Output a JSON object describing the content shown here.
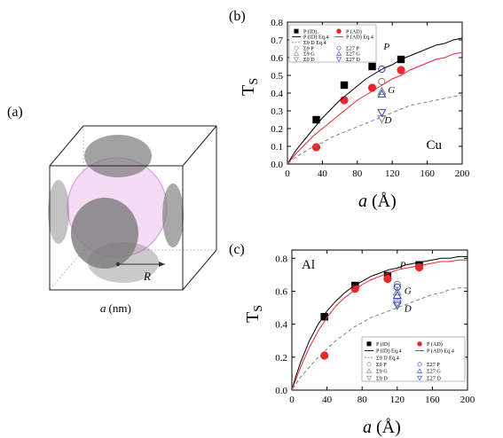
{
  "panels": {
    "a": {
      "label": "(a)",
      "radius_label": "R",
      "edge_label_var": "a",
      "edge_label_unit": "(nm)"
    },
    "b": {
      "label": "(b)",
      "element": "Cu"
    },
    "c": {
      "label": "(c)",
      "element": "Al"
    }
  },
  "colors": {
    "id_series": "#000000",
    "ad_series": "#e8262c",
    "sigma9": "#808080",
    "sigma27": "#2b3fd6",
    "fit_d": "#808080",
    "sphere_fill": "#f4d9f4",
    "disk_fill": "#7a7a7a"
  },
  "chart_data": [
    {
      "type": "scatter",
      "panel": "b",
      "ylabel_main": "T",
      "ylabel_sub": "S",
      "xlabel_var": "a",
      "xlabel_unit": "(Å)",
      "xlim": [
        0,
        200
      ],
      "ylim": [
        0,
        0.8
      ],
      "xticks": [
        "0",
        "40",
        "80",
        "120",
        "160",
        "200"
      ],
      "yticks": [
        "0.0",
        "0.1",
        "0.2",
        "0.3",
        "0.4",
        "0.5",
        "0.6",
        "0.7",
        "0.8"
      ],
      "legend": {
        "id": "P (ID)",
        "ad": "P (AD)",
        "id_fit": "P (ID) Eq.4",
        "ad_fit": "P (AD) Eq.4",
        "d_fit": "Σ9 D Eq.4",
        "s9p": "Σ9 P",
        "s9g": "Σ9 G",
        "s9d": "Σ9 D",
        "s27p": "Σ27 P",
        "s27g": "Σ27 G",
        "s27d": "Σ27 D"
      },
      "series": [
        {
          "name": "P (ID)",
          "marker": "square",
          "x": [
            33,
            65,
            97,
            130
          ],
          "y": [
            0.25,
            0.445,
            0.55,
            0.59
          ]
        },
        {
          "name": "P (AD)",
          "marker": "circle",
          "x": [
            33,
            65,
            97,
            130
          ],
          "y": [
            0.095,
            0.36,
            0.43,
            0.53
          ]
        },
        {
          "name": "Σ9 P",
          "marker": "circle-open",
          "x": [
            108
          ],
          "y": [
            0.465
          ]
        },
        {
          "name": "Σ9 G",
          "marker": "triangle-up-open",
          "x": [
            108
          ],
          "y": [
            0.41
          ]
        },
        {
          "name": "Σ9 D",
          "marker": "triangle-down-open",
          "x": [
            108
          ],
          "y": [
            0.255
          ]
        },
        {
          "name": "Σ27 P",
          "marker": "circle-open",
          "x": [
            108
          ],
          "y": [
            0.535
          ]
        },
        {
          "name": "Σ27 G",
          "marker": "triangle-up-open",
          "x": [
            108
          ],
          "y": [
            0.395
          ]
        },
        {
          "name": "Σ27 D",
          "marker": "triangle-down-open",
          "x": [
            108
          ],
          "y": [
            0.29
          ]
        },
        {
          "name": "P (ID) Eq.4",
          "line": "solid",
          "x": [
            1,
            5,
            10,
            20,
            30,
            40,
            50,
            60,
            70,
            80,
            90,
            100,
            110,
            120,
            130,
            140,
            150,
            160,
            170,
            180,
            190,
            200
          ],
          "y": [
            0.009,
            0.04,
            0.08,
            0.14,
            0.2,
            0.26,
            0.31,
            0.36,
            0.4,
            0.44,
            0.48,
            0.51,
            0.54,
            0.56,
            0.59,
            0.61,
            0.63,
            0.65,
            0.67,
            0.68,
            0.7,
            0.71
          ]
        },
        {
          "name": "P (AD) Eq.4",
          "line": "solid",
          "x": [
            1,
            5,
            10,
            20,
            30,
            40,
            50,
            60,
            70,
            80,
            90,
            100,
            110,
            120,
            130,
            140,
            150,
            160,
            170,
            180,
            190,
            200
          ],
          "y": [
            0.007,
            0.03,
            0.06,
            0.11,
            0.16,
            0.2,
            0.24,
            0.28,
            0.32,
            0.36,
            0.39,
            0.42,
            0.45,
            0.48,
            0.5,
            0.53,
            0.55,
            0.57,
            0.59,
            0.6,
            0.62,
            0.63
          ]
        },
        {
          "name": "Σ9 D Eq.4",
          "line": "dashed",
          "x": [
            1,
            5,
            10,
            20,
            30,
            40,
            50,
            60,
            70,
            80,
            90,
            100,
            110,
            120,
            130,
            140,
            150,
            160,
            170,
            180,
            190,
            200
          ],
          "y": [
            0.004,
            0.02,
            0.04,
            0.07,
            0.1,
            0.12,
            0.15,
            0.17,
            0.19,
            0.21,
            0.23,
            0.25,
            0.27,
            0.29,
            0.31,
            0.33,
            0.34,
            0.35,
            0.36,
            0.37,
            0.38,
            0.39
          ]
        }
      ],
      "annotations": [
        {
          "text": "P",
          "x": 110,
          "y": 0.645
        },
        {
          "text": "G",
          "x": 115,
          "y": 0.4
        },
        {
          "text": "D",
          "x": 111,
          "y": 0.23
        }
      ]
    },
    {
      "type": "scatter",
      "panel": "c",
      "ylabel_main": "T",
      "ylabel_sub": "S",
      "xlabel_var": "a",
      "xlabel_unit": "(Å)",
      "xlim": [
        0,
        200
      ],
      "ylim": [
        0,
        0.85
      ],
      "xticks": [
        "0",
        "40",
        "80",
        "120",
        "160",
        "200"
      ],
      "yticks": [
        "0.0",
        "0.2",
        "0.4",
        "0.6",
        "0.8"
      ],
      "legend": {
        "id": "P (ID)",
        "ad": "P (AD)",
        "id_fit": "P (ID) Eq.4",
        "ad_fit": "P (AD) Eq.4",
        "d_fit": "Σ9 D Eq.4",
        "s9p": "Σ9 P",
        "s9g": "Σ9 G",
        "s9d": "Σ9 D",
        "s27p": "Σ27 P",
        "s27g": "Σ27 G",
        "s27d": "Σ27 D"
      },
      "series": [
        {
          "name": "P (ID)",
          "marker": "square",
          "x": [
            37,
            72,
            109,
            145
          ],
          "y": [
            0.445,
            0.635,
            0.695,
            0.76
          ]
        },
        {
          "name": "P (AD)",
          "marker": "circle",
          "x": [
            37,
            72,
            109,
            145
          ],
          "y": [
            0.21,
            0.615,
            0.675,
            0.745
          ]
        },
        {
          "name": "Σ9 P",
          "marker": "circle-open",
          "x": [
            120
          ],
          "y": [
            0.64
          ]
        },
        {
          "name": "Σ9 G",
          "marker": "triangle-up-open",
          "x": [
            120
          ],
          "y": [
            0.595
          ]
        },
        {
          "name": "Σ9 D",
          "marker": "triangle-down-open",
          "x": [
            120
          ],
          "y": [
            0.53
          ]
        },
        {
          "name": "Σ27 P",
          "marker": "circle-open",
          "x": [
            120
          ],
          "y": [
            0.625
          ]
        },
        {
          "name": "Σ27 G",
          "marker": "triangle-up-open",
          "x": [
            120
          ],
          "y": [
            0.575
          ]
        },
        {
          "name": "Σ27 D",
          "marker": "triangle-down-open",
          "x": [
            120
          ],
          "y": [
            0.515
          ]
        },
        {
          "name": "P (ID) Eq.4",
          "line": "solid",
          "x": [
            1,
            5,
            10,
            20,
            30,
            40,
            50,
            60,
            70,
            80,
            90,
            100,
            110,
            120,
            130,
            140,
            150,
            160,
            170,
            180,
            190,
            200
          ],
          "y": [
            0.02,
            0.09,
            0.17,
            0.3,
            0.4,
            0.48,
            0.54,
            0.59,
            0.63,
            0.66,
            0.69,
            0.71,
            0.73,
            0.74,
            0.76,
            0.77,
            0.78,
            0.79,
            0.8,
            0.8,
            0.81,
            0.81
          ]
        },
        {
          "name": "P (AD) Eq.4",
          "line": "solid",
          "x": [
            1,
            5,
            10,
            20,
            30,
            40,
            50,
            60,
            70,
            80,
            90,
            100,
            110,
            120,
            130,
            140,
            150,
            160,
            170,
            180,
            190,
            200
          ],
          "y": [
            0.015,
            0.07,
            0.14,
            0.26,
            0.36,
            0.44,
            0.51,
            0.56,
            0.6,
            0.64,
            0.67,
            0.69,
            0.71,
            0.73,
            0.74,
            0.75,
            0.76,
            0.77,
            0.78,
            0.78,
            0.79,
            0.79
          ]
        },
        {
          "name": "Σ9 D Eq.4",
          "line": "dashed",
          "x": [
            1,
            5,
            10,
            20,
            30,
            40,
            50,
            60,
            70,
            80,
            90,
            100,
            110,
            120,
            130,
            140,
            150,
            160,
            170,
            180,
            190,
            200
          ],
          "y": [
            0.008,
            0.04,
            0.08,
            0.14,
            0.2,
            0.25,
            0.3,
            0.34,
            0.38,
            0.41,
            0.44,
            0.46,
            0.48,
            0.5,
            0.52,
            0.54,
            0.56,
            0.58,
            0.59,
            0.61,
            0.62,
            0.62
          ]
        }
      ],
      "annotations": [
        {
          "text": "P",
          "x": 123,
          "y": 0.74
        },
        {
          "text": "G",
          "x": 128,
          "y": 0.585
        },
        {
          "text": "D",
          "x": 128,
          "y": 0.475
        }
      ]
    }
  ]
}
